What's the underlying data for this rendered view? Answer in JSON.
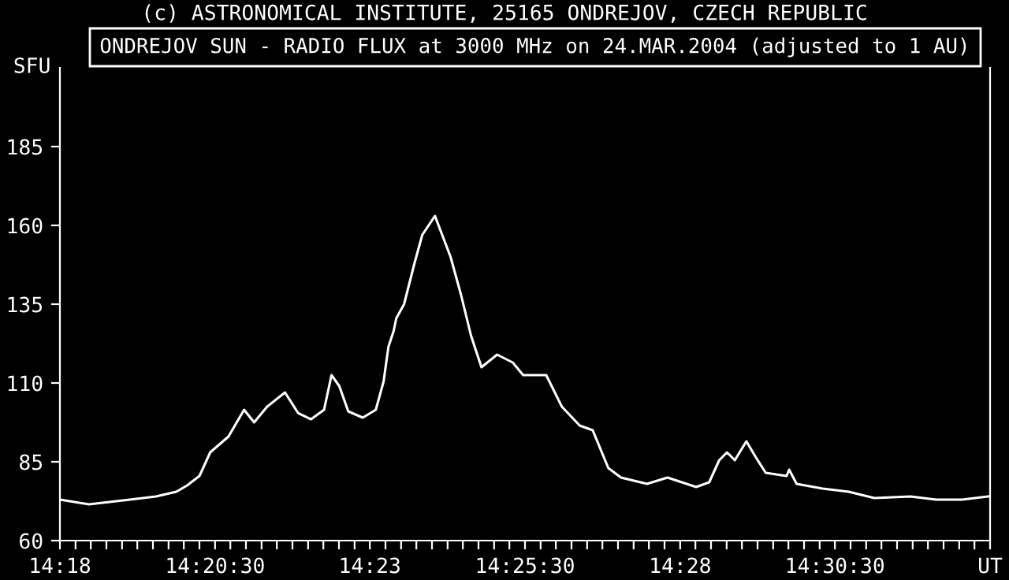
{
  "chart_data": {
    "type": "line",
    "title": "(c) ASTRONOMICAL INSTITUTE, 25165 ONDREJOV, CZECH REPUBLIC",
    "subtitle": "ONDREJOV SUN - RADIO FLUX at 3000 MHz on 24.MAR.2004 (adjusted to 1 AU)",
    "ylabel": "SFU",
    "series": [
      {
        "color": "#ffffff",
        "x": [
          14.3,
          14.3078,
          14.3188,
          14.3258,
          14.3313,
          14.3342,
          14.3375,
          14.3404,
          14.3453,
          14.3495,
          14.3522,
          14.3557,
          14.3605,
          14.364,
          14.3675,
          14.371,
          14.373,
          14.3751,
          14.3775,
          14.3814,
          14.3849,
          14.387,
          14.3883,
          14.3897,
          14.3904,
          14.3925,
          14.3953,
          14.3974,
          14.4008,
          14.4029,
          14.405,
          14.4078,
          14.4105,
          14.4133,
          14.4175,
          14.4217,
          14.4245,
          14.4307,
          14.4349,
          14.4397,
          14.4432,
          14.4474,
          14.4508,
          14.4578,
          14.4633,
          14.471,
          14.4745,
          14.4772,
          14.4793,
          14.4814,
          14.4845,
          14.487,
          14.4897,
          14.4953,
          14.496,
          14.498,
          14.505,
          14.512,
          14.5189,
          14.5286,
          14.5355,
          14.5425,
          14.5495
        ],
        "values": [
          73,
          71.5,
          73,
          74,
          75.5,
          77.5,
          80.5,
          88,
          93,
          101.5,
          97.5,
          102.5,
          107,
          100.5,
          98.5,
          101.5,
          112.5,
          109,
          101,
          99,
          101.5,
          110.5,
          121.5,
          126.5,
          130.5,
          135,
          148,
          157,
          163,
          156.5,
          150,
          138,
          125,
          115,
          119,
          116.5,
          112.5,
          112.5,
          102.5,
          96.5,
          95,
          83,
          80,
          78,
          80,
          77,
          78.5,
          85.5,
          88,
          85.5,
          91.5,
          86.5,
          81.5,
          80.5,
          82.5,
          78,
          76.5,
          75.5,
          73.5,
          74,
          73,
          73,
          74
        ]
      }
    ],
    "xlim": [
      14.3,
      14.55
    ],
    "xticks": [
      {
        "value": 14.3,
        "label": "14:18"
      },
      {
        "value": 14.3042,
        "label": null
      },
      {
        "value": 14.3083,
        "label": null
      },
      {
        "value": 14.3125,
        "label": null
      },
      {
        "value": 14.3167,
        "label": null
      },
      {
        "value": 14.3208,
        "label": null
      },
      {
        "value": 14.325,
        "label": null
      },
      {
        "value": 14.3292,
        "label": null
      },
      {
        "value": 14.3333,
        "label": null
      },
      {
        "value": 14.3375,
        "label": null
      },
      {
        "value": 14.3417,
        "label": "14:20:30"
      },
      {
        "value": 14.3458,
        "label": null
      },
      {
        "value": 14.35,
        "label": null
      },
      {
        "value": 14.3542,
        "label": null
      },
      {
        "value": 14.3583,
        "label": null
      },
      {
        "value": 14.3833,
        "label": "14:23"
      },
      {
        "value": 14.3625,
        "label": null
      },
      {
        "value": 14.3667,
        "label": null
      },
      {
        "value": 14.3708,
        "label": null
      },
      {
        "value": 14.375,
        "label": null
      },
      {
        "value": 14.3792,
        "label": null
      },
      {
        "value": 14.3875,
        "label": null
      },
      {
        "value": 14.3917,
        "label": null
      },
      {
        "value": 14.3958,
        "label": null
      },
      {
        "value": 14.4,
        "label": null
      },
      {
        "value": 14.425,
        "label": "14:25:30"
      },
      {
        "value": 14.4042,
        "label": null
      },
      {
        "value": 14.4083,
        "label": null
      },
      {
        "value": 14.4125,
        "label": null
      },
      {
        "value": 14.4167,
        "label": null
      },
      {
        "value": 14.4208,
        "label": null
      },
      {
        "value": 14.4292,
        "label": null
      },
      {
        "value": 14.4333,
        "label": null
      },
      {
        "value": 14.4375,
        "label": null
      },
      {
        "value": 14.4417,
        "label": null
      },
      {
        "value": 14.4667,
        "label": "14:28"
      },
      {
        "value": 14.4458,
        "label": null
      },
      {
        "value": 14.45,
        "label": null
      },
      {
        "value": 14.4542,
        "label": null
      },
      {
        "value": 14.4583,
        "label": null
      },
      {
        "value": 14.4625,
        "label": null
      },
      {
        "value": 14.4708,
        "label": null
      },
      {
        "value": 14.475,
        "label": null
      },
      {
        "value": 14.4792,
        "label": null
      },
      {
        "value": 14.4833,
        "label": null
      },
      {
        "value": 14.5083,
        "label": "14:30:30"
      },
      {
        "value": 14.4875,
        "label": null
      },
      {
        "value": 14.4917,
        "label": null
      },
      {
        "value": 14.4958,
        "label": null
      },
      {
        "value": 14.5,
        "label": null
      },
      {
        "value": 14.5042,
        "label": null
      },
      {
        "value": 14.5125,
        "label": null
      },
      {
        "value": 14.5167,
        "label": null
      },
      {
        "value": 14.5208,
        "label": null
      },
      {
        "value": 14.525,
        "label": null
      },
      {
        "value": 14.5292,
        "label": null
      },
      {
        "value": 14.5333,
        "label": null
      },
      {
        "value": 14.5375,
        "label": null
      },
      {
        "value": 14.5417,
        "label": null
      },
      {
        "value": 14.5458,
        "label": null
      },
      {
        "value": 14.55,
        "label": "UT"
      }
    ],
    "ylim": [
      60,
      210
    ],
    "yticks": [
      60,
      85,
      110,
      135,
      160,
      185
    ],
    "grid": false,
    "legend": false,
    "marker": "none",
    "line_style": "solid"
  }
}
